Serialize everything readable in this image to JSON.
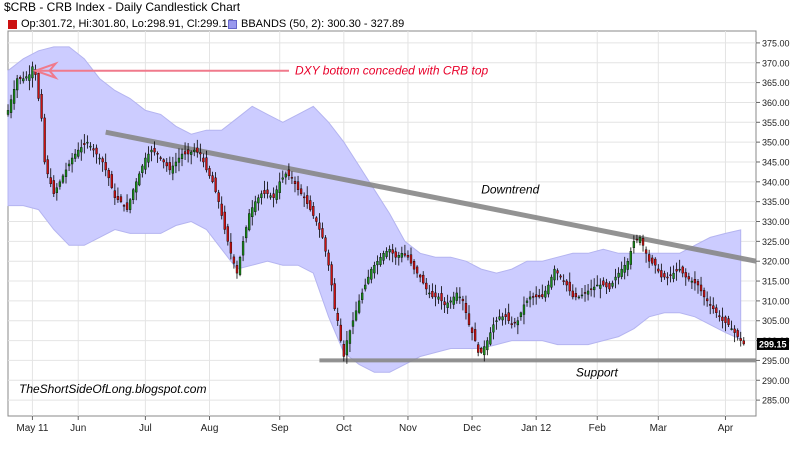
{
  "title": "$CRB - CRB Index - Daily Candlestick Chart",
  "legend": {
    "ohlc": "Op:301.72, Hi:301.80, Lo:298.91, Cl:299.15",
    "bbands": "BBANDS (50, 2): 300.30 - 327.89"
  },
  "colors": {
    "up": "#1a8c1a",
    "down": "#cc1111",
    "wick": "#000000",
    "band_fill": "#ccccff",
    "trendline": "#888888",
    "annotation": "#e8002a",
    "arrow": "#f07a8c"
  },
  "chart_data": {
    "type": "candlestick",
    "ylim": [
      281,
      378
    ],
    "yticks": [
      285,
      290,
      295,
      300,
      305,
      310,
      315,
      320,
      325,
      330,
      335,
      340,
      345,
      350,
      355,
      360,
      365,
      370,
      375
    ],
    "ytick_labels": [
      "285.00",
      "290.00",
      "295.00",
      "300.00",
      "305.00",
      "310.00",
      "315.00",
      "320.00",
      "325.00",
      "330.00",
      "335.00",
      "340.00",
      "345.00",
      "350.00",
      "355.00",
      "360.00",
      "365.00",
      "370.00",
      "375.00"
    ],
    "xlim": [
      0,
      245
    ],
    "x_ticks": [
      {
        "label": "May 11",
        "x": 8
      },
      {
        "label": "Jun",
        "x": 23
      },
      {
        "label": "Jul",
        "x": 45
      },
      {
        "label": "Aug",
        "x": 66
      },
      {
        "label": "Sep",
        "x": 89
      },
      {
        "label": "Oct",
        "x": 110
      },
      {
        "label": "Nov",
        "x": 131
      },
      {
        "label": "Dec",
        "x": 152
      },
      {
        "label": "Jan 12",
        "x": 173
      },
      {
        "label": "Feb",
        "x": 193
      },
      {
        "label": "Mar",
        "x": 213
      },
      {
        "label": "Apr",
        "x": 235
      }
    ],
    "last_price_label": "299.15",
    "anchors": [
      [
        0,
        358
      ],
      [
        3,
        366
      ],
      [
        5,
        366
      ],
      [
        7,
        367
      ],
      [
        8,
        369
      ],
      [
        9,
        367
      ],
      [
        10,
        361
      ],
      [
        11,
        356
      ],
      [
        12,
        345
      ],
      [
        13,
        342
      ],
      [
        15,
        337
      ],
      [
        17,
        340
      ],
      [
        19,
        343
      ],
      [
        21,
        346
      ],
      [
        23,
        348
      ],
      [
        26,
        350
      ],
      [
        28,
        348
      ],
      [
        31,
        345
      ],
      [
        33,
        341
      ],
      [
        35,
        336
      ],
      [
        37,
        335
      ],
      [
        39,
        333
      ],
      [
        41,
        338
      ],
      [
        43,
        342
      ],
      [
        45,
        346
      ],
      [
        47,
        348
      ],
      [
        49,
        347
      ],
      [
        51,
        345
      ],
      [
        53,
        343
      ],
      [
        55,
        345
      ],
      [
        57,
        347
      ],
      [
        59,
        347
      ],
      [
        61,
        348
      ],
      [
        63,
        347
      ],
      [
        65,
        343
      ],
      [
        67,
        340
      ],
      [
        69,
        335
      ],
      [
        71,
        328
      ],
      [
        73,
        322
      ],
      [
        75,
        317
      ],
      [
        77,
        325
      ],
      [
        79,
        332
      ],
      [
        81,
        335
      ],
      [
        83,
        337
      ],
      [
        85,
        337
      ],
      [
        87,
        336
      ],
      [
        89,
        340
      ],
      [
        91,
        342
      ],
      [
        93,
        341
      ],
      [
        95,
        338
      ],
      [
        97,
        336
      ],
      [
        99,
        333
      ],
      [
        101,
        330
      ],
      [
        103,
        326
      ],
      [
        105,
        319
      ],
      [
        106,
        314
      ],
      [
        107,
        308
      ],
      [
        108,
        305
      ],
      [
        109,
        300
      ],
      [
        110,
        296
      ],
      [
        111,
        300
      ],
      [
        113,
        305
      ],
      [
        115,
        310
      ],
      [
        117,
        314
      ],
      [
        119,
        318
      ],
      [
        121,
        320
      ],
      [
        123,
        322
      ],
      [
        125,
        323
      ],
      [
        127,
        321
      ],
      [
        129,
        322
      ],
      [
        131,
        321
      ],
      [
        133,
        318
      ],
      [
        135,
        316
      ],
      [
        137,
        313
      ],
      [
        139,
        311
      ],
      [
        141,
        311
      ],
      [
        143,
        309
      ],
      [
        145,
        310
      ],
      [
        147,
        312
      ],
      [
        149,
        310
      ],
      [
        151,
        304
      ],
      [
        153,
        300
      ],
      [
        154,
        297
      ],
      [
        155,
        297
      ],
      [
        157,
        300
      ],
      [
        159,
        304
      ],
      [
        161,
        306
      ],
      [
        163,
        306
      ],
      [
        165,
        304
      ],
      [
        167,
        305
      ],
      [
        169,
        309
      ],
      [
        171,
        311
      ],
      [
        173,
        311
      ],
      [
        175,
        311
      ],
      [
        177,
        314
      ],
      [
        179,
        318
      ],
      [
        181,
        316
      ],
      [
        183,
        314
      ],
      [
        185,
        311
      ],
      [
        187,
        311
      ],
      [
        189,
        312
      ],
      [
        191,
        313
      ],
      [
        193,
        314
      ],
      [
        195,
        314
      ],
      [
        197,
        313
      ],
      [
        199,
        316
      ],
      [
        201,
        318
      ],
      [
        203,
        320
      ],
      [
        205,
        325
      ],
      [
        207,
        326
      ],
      [
        208,
        324
      ],
      [
        210,
        320
      ],
      [
        212,
        319
      ],
      [
        214,
        316
      ],
      [
        216,
        316
      ],
      [
        218,
        317
      ],
      [
        220,
        318
      ],
      [
        222,
        316
      ],
      [
        224,
        315
      ],
      [
        226,
        314
      ],
      [
        228,
        311
      ],
      [
        230,
        309
      ],
      [
        232,
        307
      ],
      [
        234,
        305
      ],
      [
        236,
        304
      ],
      [
        238,
        302
      ],
      [
        240,
        300
      ],
      [
        241,
        299.15
      ]
    ],
    "bollinger": {
      "upper": [
        [
          0,
          368
        ],
        [
          5,
          371
        ],
        [
          10,
          373
        ],
        [
          15,
          374
        ],
        [
          20,
          374
        ],
        [
          25,
          371
        ],
        [
          30,
          366
        ],
        [
          35,
          363
        ],
        [
          40,
          361
        ],
        [
          45,
          358
        ],
        [
          50,
          357
        ],
        [
          55,
          354
        ],
        [
          60,
          352
        ],
        [
          65,
          353
        ],
        [
          70,
          353
        ],
        [
          75,
          356
        ],
        [
          80,
          359
        ],
        [
          85,
          357
        ],
        [
          90,
          355
        ],
        [
          95,
          357
        ],
        [
          100,
          359
        ],
        [
          105,
          355
        ],
        [
          110,
          350
        ],
        [
          115,
          344
        ],
        [
          120,
          338
        ],
        [
          125,
          332
        ],
        [
          130,
          325
        ],
        [
          135,
          322
        ],
        [
          140,
          321
        ],
        [
          145,
          321
        ],
        [
          150,
          320
        ],
        [
          155,
          318
        ],
        [
          160,
          317
        ],
        [
          165,
          318
        ],
        [
          170,
          320
        ],
        [
          175,
          320
        ],
        [
          180,
          321
        ],
        [
          185,
          322
        ],
        [
          190,
          322
        ],
        [
          195,
          323
        ],
        [
          200,
          322
        ],
        [
          205,
          322
        ],
        [
          210,
          322
        ],
        [
          215,
          322
        ],
        [
          220,
          322
        ],
        [
          225,
          324
        ],
        [
          230,
          326
        ],
        [
          235,
          327
        ],
        [
          240,
          327.89
        ]
      ],
      "lower": [
        [
          0,
          334
        ],
        [
          5,
          334
        ],
        [
          10,
          333
        ],
        [
          15,
          328
        ],
        [
          20,
          324
        ],
        [
          25,
          324
        ],
        [
          30,
          326
        ],
        [
          35,
          328
        ],
        [
          40,
          327
        ],
        [
          45,
          327
        ],
        [
          50,
          327
        ],
        [
          55,
          329
        ],
        [
          60,
          330
        ],
        [
          65,
          328
        ],
        [
          70,
          323
        ],
        [
          75,
          318
        ],
        [
          80,
          319
        ],
        [
          85,
          320
        ],
        [
          90,
          319
        ],
        [
          95,
          319
        ],
        [
          100,
          317
        ],
        [
          105,
          306
        ],
        [
          110,
          297
        ],
        [
          115,
          294
        ],
        [
          120,
          292
        ],
        [
          125,
          292
        ],
        [
          130,
          294
        ],
        [
          135,
          296
        ],
        [
          140,
          297
        ],
        [
          145,
          298
        ],
        [
          150,
          298
        ],
        [
          155,
          298
        ],
        [
          160,
          299
        ],
        [
          165,
          300
        ],
        [
          170,
          300
        ],
        [
          175,
          300
        ],
        [
          180,
          299
        ],
        [
          185,
          299
        ],
        [
          190,
          299
        ],
        [
          195,
          300
        ],
        [
          200,
          301
        ],
        [
          205,
          303
        ],
        [
          210,
          306
        ],
        [
          215,
          307
        ],
        [
          220,
          307
        ],
        [
          225,
          306
        ],
        [
          230,
          304
        ],
        [
          235,
          302
        ],
        [
          240,
          300.3
        ]
      ]
    },
    "lines": [
      {
        "name": "Downtrend",
        "from": [
          32,
          352.5
        ],
        "to": [
          245,
          320
        ]
      },
      {
        "name": "Support",
        "from": [
          102,
          295
        ],
        "to": [
          245,
          295
        ]
      }
    ],
    "annotations": [
      {
        "text": "DXY bottom conceded with CRB top",
        "x": 94,
        "y": 368
      },
      {
        "text": "Downtrend",
        "x": 155,
        "y": 337
      },
      {
        "text": "Support",
        "x": 186,
        "y": 291
      },
      {
        "text": "TheShortSideOfLong.blogspot.com",
        "x": 2,
        "y": 287
      }
    ]
  }
}
